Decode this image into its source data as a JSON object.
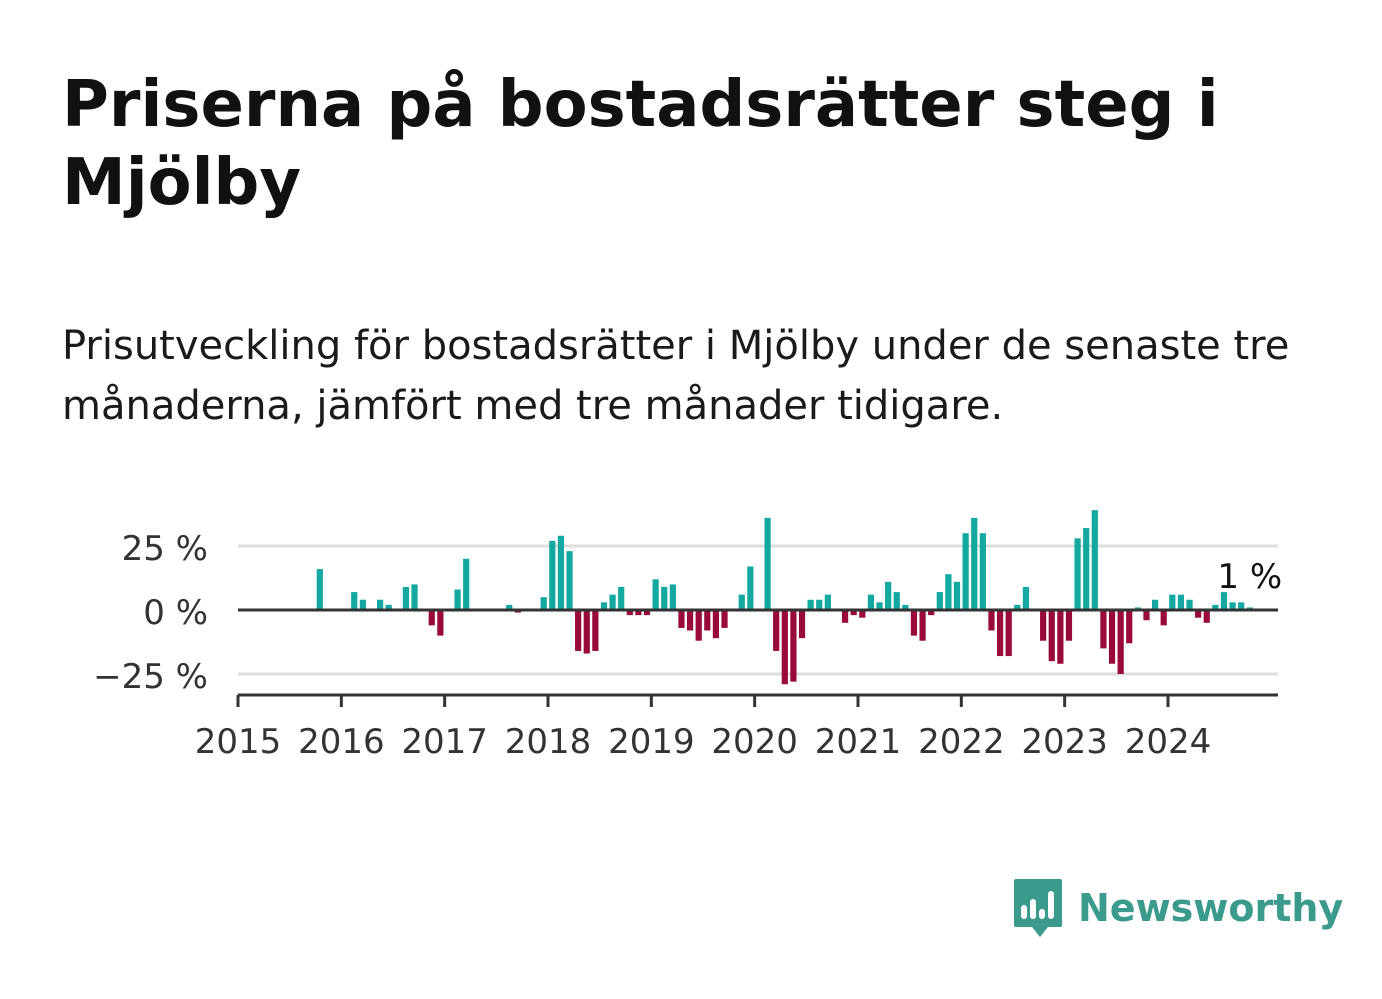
{
  "title": "Priserna på bostadsrätter steg i Mjölby",
  "subtitle": "Prisutveckling för bostadsrätter i Mjölby under de senaste tre månaderna, jämfört med tre månader tidigare.",
  "brand": {
    "name": "Newsworthy",
    "icon": "newsworthy-logo-icon",
    "color": "#3a9a8c"
  },
  "colors": {
    "positive": "#13a8a0",
    "negative": "#990a3a",
    "grid": "#dddddd",
    "axis": "#333333"
  },
  "chart_data": {
    "type": "bar",
    "title": "",
    "xlabel": "",
    "ylabel": "",
    "ylim": [
      -33,
      40
    ],
    "y_ticks": [
      25,
      0,
      -25
    ],
    "y_tick_labels": [
      "25 %",
      "0 %",
      "−25 %"
    ],
    "x_ticks": [
      "2015",
      "2016",
      "2017",
      "2018",
      "2019",
      "2020",
      "2021",
      "2022",
      "2023",
      "2024"
    ],
    "grid": true,
    "last_value_label": "1 %",
    "series": [
      {
        "values": [
          null,
          null,
          null,
          null,
          null,
          null,
          null,
          null,
          null,
          16,
          null,
          null,
          null,
          7,
          4,
          null,
          4,
          2,
          null,
          9,
          10,
          null,
          -6,
          -10,
          null,
          8,
          20,
          null,
          null,
          null,
          null,
          2,
          -1,
          null,
          null,
          5,
          27,
          29,
          23,
          -16,
          -17,
          -16,
          3,
          6,
          9,
          -2,
          -2,
          -2,
          12,
          9,
          10,
          -7,
          -8,
          -12,
          -8,
          -11,
          -7,
          null,
          6,
          17,
          null,
          36,
          -16,
          -29,
          -28,
          -11,
          4,
          4,
          6,
          null,
          -5,
          -2,
          -3,
          6,
          3,
          11,
          7,
          2,
          -10,
          -12,
          -2,
          7,
          14,
          11,
          30,
          36,
          30,
          -8,
          -18,
          -18,
          2,
          9,
          null,
          -12,
          -20,
          -21,
          -12,
          28,
          32,
          39,
          -15,
          -21,
          -25,
          -13,
          1,
          -4,
          4,
          -6,
          6,
          6,
          4,
          -3,
          -5,
          2,
          7,
          3,
          3,
          1
        ]
      }
    ]
  }
}
